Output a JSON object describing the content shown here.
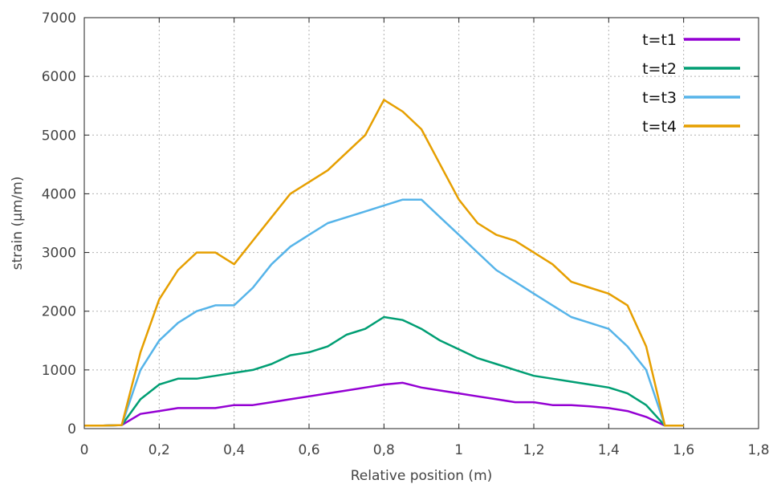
{
  "chart_data": {
    "type": "line",
    "title": "",
    "xlabel": "Relative position (m)",
    "ylabel": "strain (µm/m)",
    "xlim": [
      0,
      1.8
    ],
    "ylim": [
      0,
      7000
    ],
    "x_ticks": [
      0,
      0.2,
      0.4,
      0.6,
      0.8,
      1.0,
      1.2,
      1.4,
      1.6,
      1.8
    ],
    "x_tick_labels": [
      "0",
      "0,2",
      "0,4",
      "0,6",
      "0,8",
      "1",
      "1,2",
      "1,4",
      "1,6",
      "1,8"
    ],
    "y_ticks": [
      0,
      1000,
      2000,
      3000,
      4000,
      5000,
      6000,
      7000
    ],
    "y_tick_labels": [
      "0",
      "1000",
      "2000",
      "3000",
      "4000",
      "5000",
      "6000",
      "7000"
    ],
    "grid": true,
    "legend_position": "top-right",
    "x": [
      0,
      0.05,
      0.1,
      0.15,
      0.2,
      0.25,
      0.3,
      0.35,
      0.4,
      0.45,
      0.5,
      0.55,
      0.6,
      0.65,
      0.7,
      0.75,
      0.8,
      0.85,
      0.9,
      0.95,
      1.0,
      1.05,
      1.1,
      1.15,
      1.2,
      1.25,
      1.3,
      1.35,
      1.4,
      1.45,
      1.5,
      1.55,
      1.6
    ],
    "series": [
      {
        "name": "t=t1",
        "color": "#9400d3",
        "values": [
          50,
          50,
          60,
          250,
          300,
          350,
          350,
          350,
          400,
          400,
          450,
          500,
          550,
          600,
          650,
          700,
          750,
          780,
          700,
          650,
          600,
          550,
          500,
          450,
          450,
          400,
          400,
          380,
          350,
          300,
          200,
          50,
          50
        ]
      },
      {
        "name": "t=t2",
        "color": "#009e73",
        "values": [
          50,
          50,
          60,
          500,
          750,
          850,
          850,
          900,
          950,
          1000,
          1100,
          1250,
          1300,
          1400,
          1600,
          1700,
          1900,
          1850,
          1700,
          1500,
          1350,
          1200,
          1100,
          1000,
          900,
          850,
          800,
          750,
          700,
          600,
          400,
          50,
          50
        ]
      },
      {
        "name": "t=t3",
        "color": "#56b4e9",
        "values": [
          50,
          50,
          60,
          1000,
          1500,
          1800,
          2000,
          2100,
          2100,
          2400,
          2800,
          3100,
          3300,
          3500,
          3600,
          3700,
          3800,
          3900,
          3900,
          3600,
          3300,
          3000,
          2700,
          2500,
          2300,
          2100,
          1900,
          1800,
          1700,
          1400,
          1000,
          50,
          50
        ]
      },
      {
        "name": "t=t4",
        "color": "#e69f00",
        "values": [
          50,
          50,
          60,
          1300,
          2200,
          2700,
          3000,
          3000,
          2800,
          3200,
          3600,
          4000,
          4200,
          4400,
          4700,
          5000,
          5600,
          5400,
          5100,
          4500,
          3900,
          3500,
          3300,
          3200,
          3000,
          2800,
          2500,
          2400,
          2300,
          2100,
          1400,
          50,
          50
        ]
      }
    ]
  }
}
